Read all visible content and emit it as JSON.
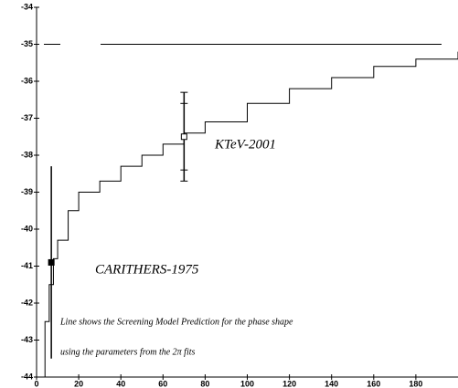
{
  "chart_data": {
    "type": "step",
    "xlim": [
      0,
      200
    ],
    "ylim": [
      -44,
      -34
    ],
    "xticks": [
      0,
      20,
      40,
      60,
      80,
      100,
      120,
      140,
      160,
      180
    ],
    "yticks": [
      -44,
      -43,
      -42,
      -41,
      -40,
      -39,
      -38,
      -37,
      -36,
      -35,
      -34
    ],
    "hline": -35,
    "series": [
      {
        "color": "#000000",
        "x": [
          2,
          4,
          6,
          8,
          10,
          15,
          20,
          30,
          40,
          50,
          60,
          70,
          80,
          100,
          120,
          140,
          160,
          180,
          200
        ],
        "values": [
          -44,
          -42.5,
          -41.5,
          -40.8,
          -40.3,
          -39.5,
          -39.0,
          -38.7,
          -38.3,
          -38.0,
          -37.7,
          -37.4,
          -37.1,
          -36.6,
          -36.2,
          -35.9,
          -35.6,
          -35.4,
          -35.2
        ]
      }
    ],
    "points": [
      {
        "name": "CARITHERS-1975",
        "x": 7,
        "y": -40.9,
        "low": -43.5,
        "high": -38.3,
        "filled": true
      },
      {
        "name": "KTeV-2001",
        "x": 70,
        "y": -37.5,
        "low": -38.7,
        "high": -36.3,
        "inner_low": -38.4,
        "inner_high": -36.6,
        "filled": false
      }
    ],
    "annotations": [
      "Line shows the Screening Model Prediction for the phase shape",
      "using the parameters from the 2π fits"
    ]
  }
}
